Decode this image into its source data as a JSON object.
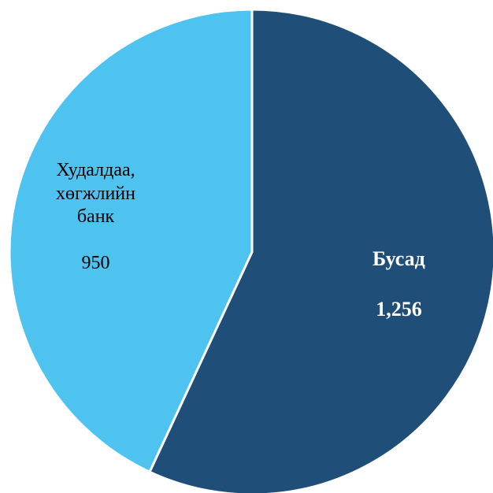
{
  "chart_data": {
    "type": "pie",
    "title": "",
    "slices": [
      {
        "label": "Бусад",
        "value": 1256,
        "value_text": "1,256",
        "color": "#1f4e79",
        "bold": true
      },
      {
        "label": "Худалдаа,\nхөгжлийн\nбанк",
        "value": 950,
        "value_text": "950",
        "color": "#4fc3f0",
        "bold": false
      }
    ],
    "start_angle_deg": 0,
    "direction": "clockwise",
    "legend": "none"
  }
}
